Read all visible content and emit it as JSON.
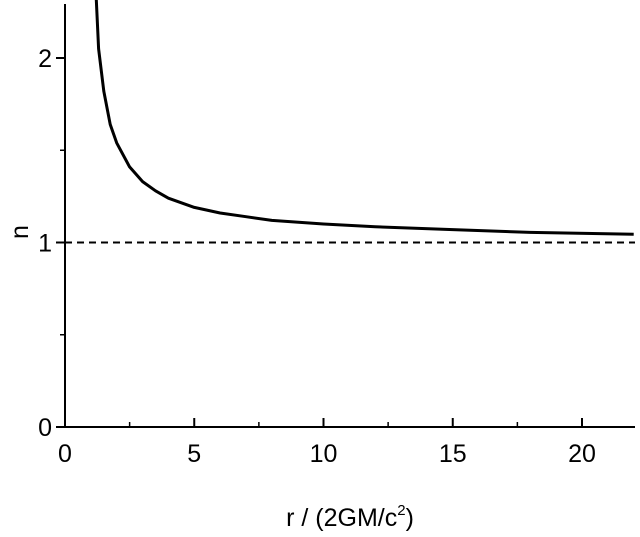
{
  "chart_data": {
    "type": "line",
    "title": "",
    "xlabel": "r / (2GM/c",
    "xlabel_sup": "2",
    "xlabel_end": ")",
    "ylabel": "n",
    "xlim": [
      0,
      22
    ],
    "ylim": [
      0,
      2.3
    ],
    "x_ticks": [
      0,
      5,
      10,
      15,
      20
    ],
    "x_tick_labels": [
      "0",
      "5",
      "10",
      "15",
      "20"
    ],
    "y_ticks": [
      0,
      1,
      2
    ],
    "y_tick_labels": [
      "0",
      "1",
      "2"
    ],
    "grid": false,
    "legend": "none",
    "series": [
      {
        "style": "solid",
        "color": "#000000",
        "x": [
          1.2,
          1.3,
          1.5,
          1.75,
          2,
          2.5,
          3,
          3.5,
          4,
          5,
          6,
          7,
          8,
          10,
          12,
          15,
          18,
          22
        ],
        "y": [
          2.35,
          2.05,
          1.82,
          1.64,
          1.54,
          1.41,
          1.33,
          1.28,
          1.24,
          1.19,
          1.16,
          1.14,
          1.12,
          1.1,
          1.085,
          1.07,
          1.055,
          1.045
        ]
      }
    ],
    "reference_line": {
      "y": 1,
      "style": "dashed",
      "color": "#000000"
    }
  }
}
